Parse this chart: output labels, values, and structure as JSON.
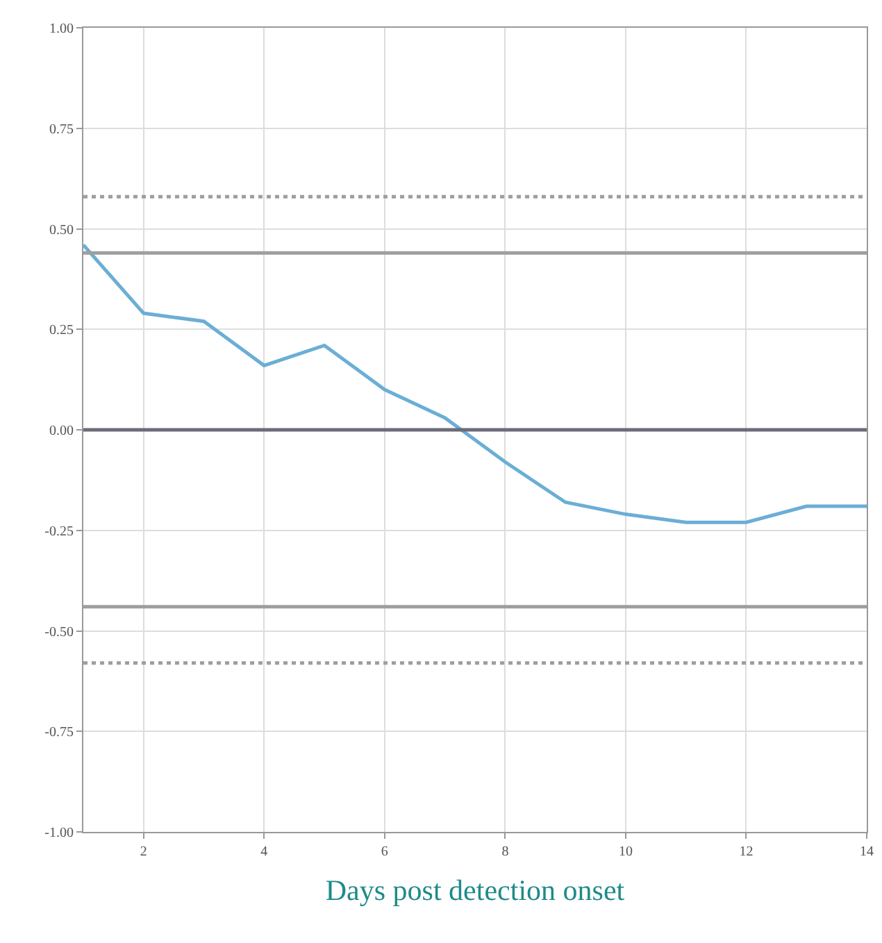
{
  "chart_data": {
    "type": "line",
    "xlabel": "Days post detection onset",
    "x": [
      1,
      2,
      3,
      4,
      5,
      6,
      7,
      8,
      9,
      10,
      11,
      12,
      13,
      14
    ],
    "series": [
      {
        "color": "#6baed6",
        "values": [
          0.46,
          0.29,
          0.27,
          0.16,
          0.21,
          0.1,
          0.03,
          -0.08,
          -0.18,
          -0.21,
          -0.23,
          -0.23,
          -0.19,
          -0.19
        ]
      }
    ],
    "xlim": [
      1,
      14
    ],
    "xticks": [
      2,
      4,
      6,
      8,
      10,
      12,
      14
    ],
    "ylim": [
      -1.0,
      1.0
    ],
    "yticks": [
      {
        "value": -1,
        "label": "-1.00"
      },
      {
        "value": -0.75,
        "label": "-0.75"
      },
      {
        "value": -0.5,
        "label": "-0.50"
      },
      {
        "value": -0.25,
        "label": "-0.25"
      },
      {
        "value": 0,
        "label": "0.00"
      },
      {
        "value": 0.25,
        "label": "0.25"
      },
      {
        "value": 0.5,
        "label": "0.50"
      },
      {
        "value": 0.75,
        "label": "0.75"
      },
      {
        "value": 1,
        "label": "1.00"
      }
    ],
    "ref_lines": [
      {
        "axis": "y",
        "value": 0.58,
        "color": "#9e9e9e",
        "line_style": "dotted"
      },
      {
        "axis": "y",
        "value": 0.44,
        "color": "#9e9e9e",
        "line_style": "solid"
      },
      {
        "axis": "y",
        "value": 0,
        "color": "#6b6b78",
        "line_style": "solid"
      },
      {
        "axis": "y",
        "value": -0.44,
        "color": "#9e9e9e",
        "line_style": "solid"
      },
      {
        "axis": "y",
        "value": -0.58,
        "color": "#9e9e9e",
        "line_style": "dotted"
      }
    ],
    "grid": true,
    "legend": false,
    "marker": "none",
    "line_style": "solid"
  }
}
